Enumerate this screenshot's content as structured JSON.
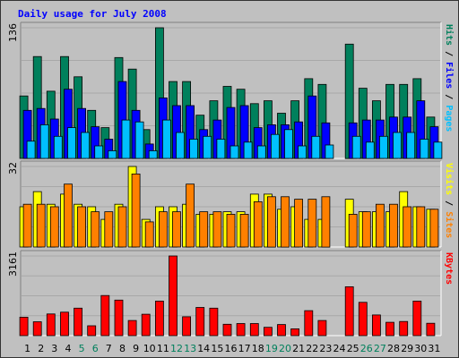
{
  "title": "Daily usage for July 2008",
  "colors": {
    "hits": "#00805c",
    "files": "#0000ff",
    "pages": "#00c0ff",
    "visits": "#ffff00",
    "sites": "#ff8000",
    "kbytes": "#ff0000",
    "title": "#0000ff",
    "weekend": "#00805c",
    "weekday": "#000000"
  },
  "chart_data": [
    {
      "type": "bar",
      "name_panel": "hits-files-pages",
      "ymax_label": "136",
      "ymax": 136,
      "legend": [
        {
          "label": "Pages",
          "key": "pages"
        },
        {
          "label": "Files",
          "key": "files"
        },
        {
          "label": "Hits",
          "key": "hits"
        }
      ],
      "x": [
        1,
        2,
        3,
        4,
        5,
        6,
        7,
        8,
        9,
        10,
        11,
        12,
        13,
        14,
        15,
        16,
        17,
        18,
        19,
        20,
        21,
        22,
        23,
        24,
        25,
        26,
        27,
        28,
        29,
        30,
        31
      ],
      "series": [
        {
          "key": "hits",
          "values": [
            65,
            106,
            70,
            106,
            85,
            50,
            32,
            105,
            93,
            30,
            136,
            80,
            80,
            45,
            60,
            75,
            72,
            57,
            60,
            47,
            60,
            83,
            77,
            0,
            119,
            73,
            60,
            77,
            77,
            83,
            43
          ]
        },
        {
          "key": "files",
          "values": [
            50,
            52,
            41,
            72,
            52,
            33,
            20,
            80,
            50,
            15,
            63,
            55,
            55,
            30,
            40,
            53,
            55,
            32,
            35,
            35,
            38,
            65,
            37,
            0,
            37,
            40,
            40,
            43,
            43,
            60,
            33
          ]
        },
        {
          "key": "pages",
          "values": [
            18,
            35,
            23,
            32,
            27,
            13,
            8,
            40,
            38,
            8,
            40,
            27,
            20,
            23,
            20,
            13,
            17,
            13,
            25,
            30,
            13,
            23,
            14,
            0,
            23,
            17,
            23,
            27,
            27,
            20,
            17
          ]
        }
      ]
    },
    {
      "type": "bar",
      "name_panel": "visits-sites",
      "ymax_label": "32",
      "ymax": 32,
      "legend": [
        {
          "label": "Sites",
          "key": "sites"
        },
        {
          "label": "Visits",
          "key": "visits"
        }
      ],
      "x": [
        1,
        2,
        3,
        4,
        5,
        6,
        7,
        8,
        9,
        10,
        11,
        12,
        13,
        14,
        15,
        16,
        17,
        18,
        19,
        20,
        21,
        22,
        23,
        24,
        25,
        26,
        27,
        28,
        29,
        30,
        31
      ],
      "series": [
        {
          "key": "visits",
          "values": [
            16,
            22,
            17,
            21,
            17,
            16,
            11,
            17,
            32,
            11,
            16,
            16,
            17,
            13,
            13,
            14,
            14,
            21,
            21,
            15,
            16,
            11,
            11,
            0,
            19,
            14,
            14,
            14,
            22,
            16,
            15
          ]
        },
        {
          "key": "sites",
          "values": [
            17,
            17,
            16,
            25,
            16,
            14,
            14,
            16,
            29,
            10,
            14,
            14,
            25,
            14,
            14,
            13,
            13,
            18,
            20,
            20,
            19,
            19,
            20,
            0,
            13,
            14,
            17,
            17,
            16,
            16,
            15
          ]
        }
      ]
    },
    {
      "type": "bar",
      "name_panel": "kbytes",
      "ymax_label": "3161",
      "ymax": 3161,
      "legend": [
        {
          "label": "KBytes",
          "key": "kbytes"
        }
      ],
      "x": [
        1,
        2,
        3,
        4,
        5,
        6,
        7,
        8,
        9,
        10,
        11,
        12,
        13,
        14,
        15,
        16,
        17,
        18,
        19,
        20,
        21,
        22,
        23,
        24,
        25,
        26,
        27,
        28,
        29,
        30,
        31
      ],
      "series": [
        {
          "key": "kbytes",
          "values": [
            730,
            550,
            860,
            930,
            1090,
            390,
            1590,
            1410,
            600,
            850,
            1370,
            3161,
            750,
            1120,
            1090,
            450,
            480,
            480,
            330,
            440,
            270,
            990,
            600,
            0,
            1940,
            1320,
            820,
            530,
            560,
            1370,
            490
          ]
        }
      ]
    }
  ],
  "x_labels": [
    {
      "text": "1",
      "weekend": false
    },
    {
      "text": "2",
      "weekend": false
    },
    {
      "text": "3",
      "weekend": false
    },
    {
      "text": "4",
      "weekend": false
    },
    {
      "text": "5",
      "weekend": true
    },
    {
      "text": "6",
      "weekend": true
    },
    {
      "text": "7",
      "weekend": false
    },
    {
      "text": "8",
      "weekend": false
    },
    {
      "text": "9",
      "weekend": false
    },
    {
      "text": "10",
      "weekend": false
    },
    {
      "text": "11",
      "weekend": false
    },
    {
      "text": "12",
      "weekend": true
    },
    {
      "text": "13",
      "weekend": true
    },
    {
      "text": "14",
      "weekend": false
    },
    {
      "text": "15",
      "weekend": false
    },
    {
      "text": "16",
      "weekend": false
    },
    {
      "text": "17",
      "weekend": false
    },
    {
      "text": "18",
      "weekend": false
    },
    {
      "text": "19",
      "weekend": true
    },
    {
      "text": "20",
      "weekend": true
    },
    {
      "text": "21",
      "weekend": false
    },
    {
      "text": "22",
      "weekend": false
    },
    {
      "text": "23",
      "weekend": false
    },
    {
      "text": "24",
      "weekend": false
    },
    {
      "text": "25",
      "weekend": false
    },
    {
      "text": "26",
      "weekend": true
    },
    {
      "text": "27",
      "weekend": true
    },
    {
      "text": "28",
      "weekend": false
    },
    {
      "text": "29",
      "weekend": false
    },
    {
      "text": "30",
      "weekend": false
    },
    {
      "text": "31",
      "weekend": false
    }
  ]
}
